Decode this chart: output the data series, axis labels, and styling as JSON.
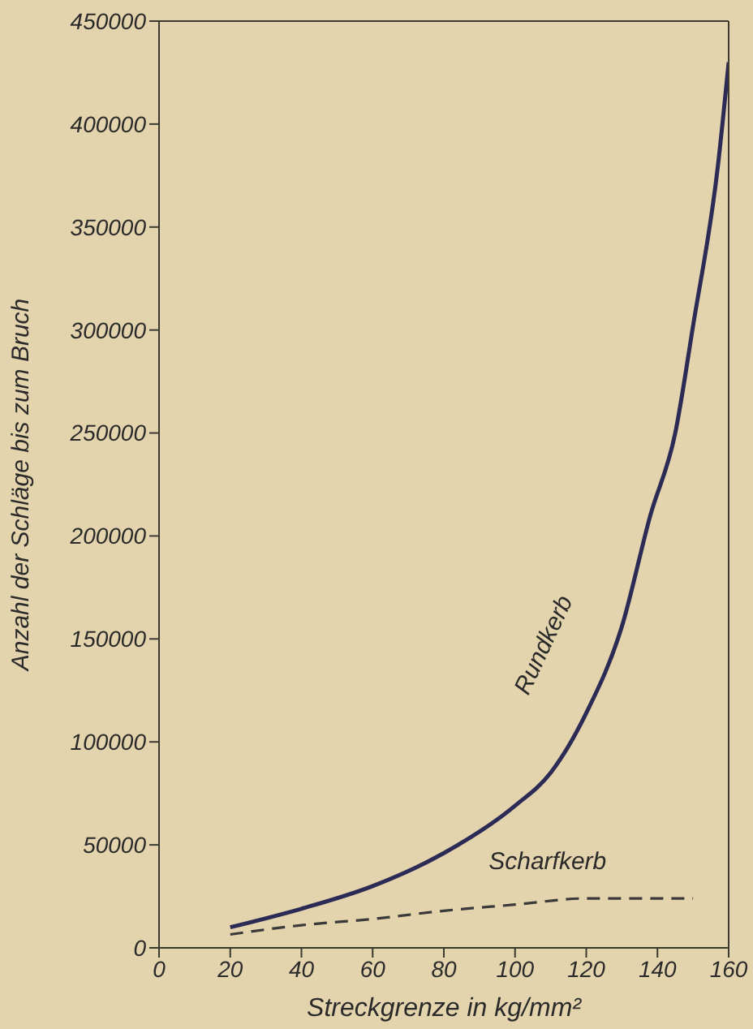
{
  "chart_data": {
    "type": "line",
    "xlabel": "Streckgrenze in kg/mm²",
    "ylabel": "Anzahl der Schläge bis zum Bruch",
    "xlim": [
      0,
      160
    ],
    "xticks": [
      0,
      20,
      40,
      60,
      80,
      100,
      120,
      140,
      160
    ],
    "ylim": [
      0,
      450000
    ],
    "yticks": [
      0,
      50000,
      100000,
      150000,
      200000,
      250000,
      300000,
      350000,
      400000,
      450000
    ],
    "marker": "none",
    "series": [
      {
        "name": "Rundkerb",
        "color": "#2b2b55",
        "line_style": "solid",
        "x": [
          20,
          40,
          60,
          80,
          100,
          110,
          120,
          130,
          138,
          145,
          150,
          157,
          160
        ],
        "values": [
          10000,
          19000,
          30000,
          46000,
          69000,
          85000,
          114000,
          156000,
          210000,
          250000,
          302000,
          380000,
          430000
        ]
      },
      {
        "name": "Scharfkerb",
        "color": "#3a3a3a",
        "line_style": "dashed",
        "x": [
          20,
          40,
          60,
          80,
          100,
          120,
          150
        ],
        "values": [
          6500,
          11000,
          14000,
          18000,
          21000,
          24000,
          24000
        ]
      }
    ]
  }
}
